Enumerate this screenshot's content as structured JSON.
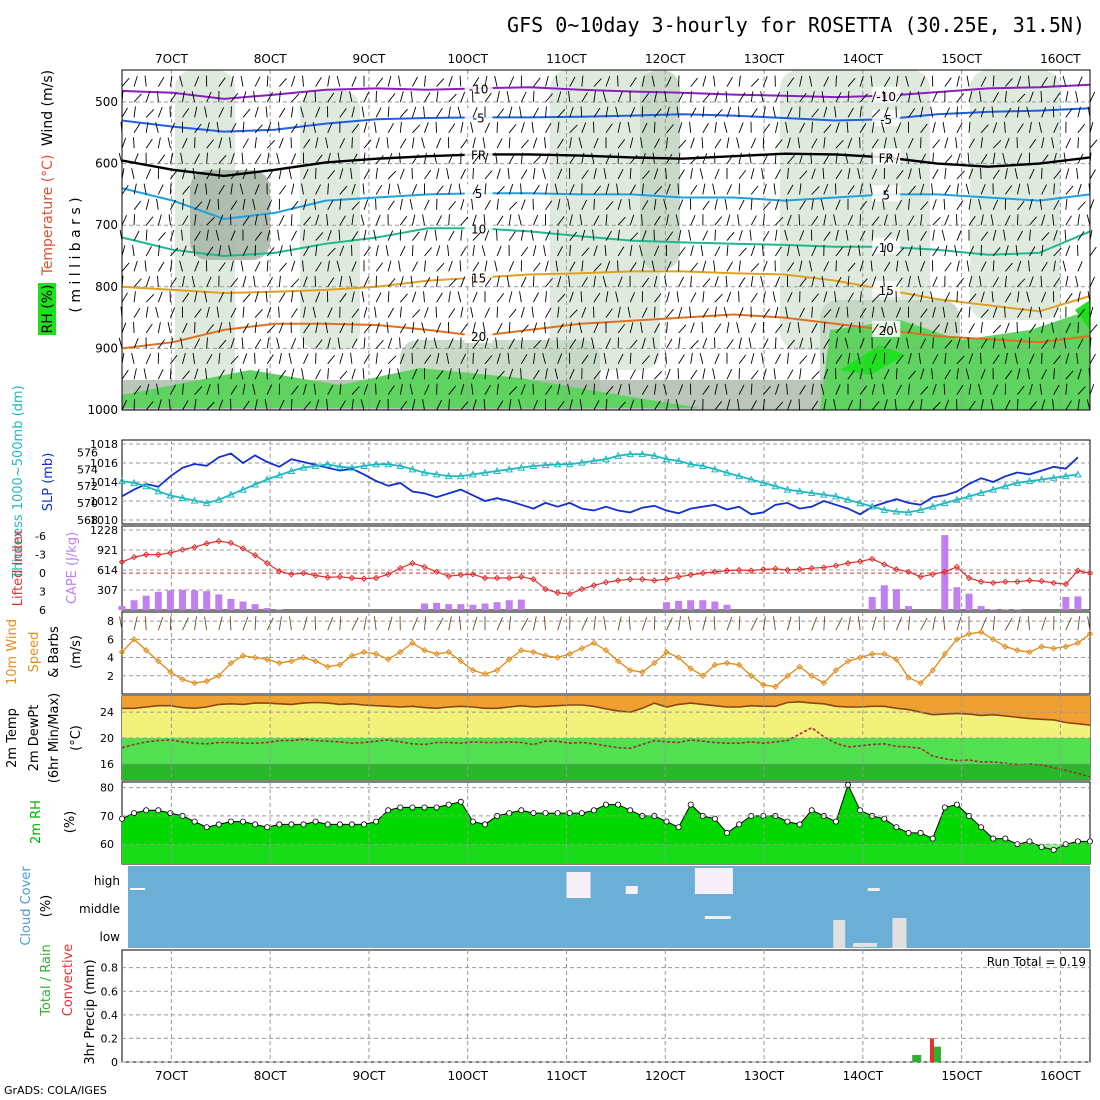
{
  "title": "GFS 0~10day 3-hourly for ROSETTA (30.25E, 31.5N)",
  "footer": "GrADS: COLA/IGES",
  "time_axis": {
    "labels": [
      "7OCT",
      "8OCT",
      "9OCT",
      "10OCT",
      "11OCT",
      "12OCT",
      "13OCT",
      "14OCT",
      "15OCT",
      "16OCT"
    ],
    "start_day": 6.5,
    "end_day": 16.3,
    "steps": 80
  },
  "chart_data": [
    {
      "type": "heatmap",
      "panel": "upper-air",
      "ylabel_parts": [
        "RH (%)",
        "Temperature (°C)",
        "Wind (m/s)"
      ],
      "ylabel_units": "( m i l l i b a r s )",
      "y_ticks": [
        500,
        600,
        700,
        800,
        900,
        1000
      ],
      "ylim": [
        1000,
        450
      ],
      "colors": {
        "rh_light": "#dbe8db",
        "rh_mid": "#c3d6c3",
        "rh_grey": "#a8b8a8",
        "rh_green": "#5fd35f",
        "rh_bright": "#1fe01f"
      },
      "temperature_contours": [
        {
          "label": "-10",
          "color": "#8a1fc0",
          "levels_mb": [
            482,
            485,
            495,
            488,
            480,
            478,
            480,
            478,
            476,
            480,
            483,
            485,
            488,
            490,
            492,
            490,
            484,
            478,
            476,
            472
          ]
        },
        {
          "label": "-5",
          "color": "#1f5fe0",
          "levels_mb": [
            530,
            540,
            548,
            545,
            535,
            528,
            526,
            525,
            525,
            524,
            522,
            520,
            522,
            526,
            530,
            528,
            520,
            516,
            514,
            510
          ]
        },
        {
          "label": "FR",
          "color": "#000000",
          "levels_mb": [
            595,
            610,
            620,
            610,
            598,
            592,
            588,
            585,
            585,
            587,
            590,
            592,
            588,
            584,
            585,
            590,
            600,
            605,
            600,
            590
          ]
        },
        {
          "label": "5",
          "color": "#1fa0e0",
          "levels_mb": [
            640,
            660,
            690,
            680,
            660,
            655,
            650,
            648,
            648,
            650,
            650,
            655,
            655,
            660,
            655,
            650,
            650,
            655,
            660,
            650
          ]
        },
        {
          "label": "10",
          "color": "#1fb890",
          "levels_mb": [
            720,
            740,
            750,
            745,
            730,
            720,
            705,
            705,
            710,
            718,
            725,
            728,
            730,
            732,
            735,
            735,
            740,
            748,
            745,
            710
          ]
        },
        {
          "label": "15",
          "color": "#e0a020",
          "levels_mb": [
            800,
            805,
            810,
            808,
            805,
            800,
            790,
            785,
            780,
            778,
            775,
            775,
            778,
            780,
            790,
            805,
            820,
            830,
            840,
            815
          ]
        },
        {
          "label": "20",
          "color": "#e07020",
          "levels_mb": [
            900,
            890,
            870,
            860,
            860,
            862,
            870,
            880,
            870,
            860,
            855,
            850,
            845,
            850,
            860,
            870,
            880,
            885,
            890,
            880
          ]
        }
      ]
    },
    {
      "type": "line",
      "panel": "slp-thickness",
      "ylabel_left": "SLP (mb)",
      "ylabel_left2": "Thickness 1000~500mb (dm)",
      "y_ticks_left": [
        1010,
        1012,
        1014,
        1016,
        1018
      ],
      "y_ticks_right_labels": [
        568,
        570,
        572,
        574,
        576
      ],
      "ylim_left": [
        1010,
        1018
      ],
      "ylim_right": [
        568,
        577
      ],
      "series": [
        {
          "name": "SLP (mb)",
          "color": "#1030d0",
          "marker": "none",
          "axis": "left",
          "values": [
            1012.5,
            1013.2,
            1013.8,
            1013.5,
            1014.6,
            1015.5,
            1015.9,
            1015.7,
            1016.6,
            1017.0,
            1016.0,
            1016.8,
            1016.1,
            1015.6,
            1016.4,
            1016.1,
            1015.8,
            1015.5,
            1015.2,
            1015.4,
            1014.8,
            1014.1,
            1013.6,
            1013.9,
            1013.0,
            1012.8,
            1012.4,
            1012.8,
            1013.2,
            1012.6,
            1012.0,
            1012.3,
            1012.0,
            1011.6,
            1011.2,
            1011.8,
            1011.4,
            1011.8,
            1011.2,
            1011.0,
            1011.4,
            1011.0,
            1010.8,
            1011.3,
            1011.5,
            1011.0,
            1010.7,
            1011.2,
            1011.4,
            1011.6,
            1011.1,
            1011.4,
            1010.6,
            1010.8,
            1011.6,
            1011.8,
            1011.2,
            1011.4,
            1012.0,
            1011.6,
            1011.2,
            1010.6,
            1011.4,
            1011.8,
            1012.2,
            1011.8,
            1011.6,
            1012.4,
            1012.6,
            1013.0,
            1013.8,
            1014.4,
            1014.0,
            1014.6,
            1015.0,
            1014.8,
            1015.2,
            1015.6,
            1015.4,
            1016.6
          ]
        },
        {
          "name": "Thickness 1000~500mb (dm)",
          "color": "#20b8c0",
          "marker": "triangle",
          "axis": "right",
          "values": [
            572.6,
            572.4,
            572.0,
            571.4,
            570.9,
            570.6,
            570.3,
            570.0,
            570.4,
            571.0,
            571.6,
            572.2,
            572.8,
            573.3,
            573.8,
            574.2,
            574.4,
            574.6,
            574.3,
            574.2,
            574.4,
            574.6,
            574.6,
            574.4,
            574.0,
            573.6,
            573.4,
            573.2,
            573.2,
            573.4,
            573.6,
            573.8,
            574.0,
            574.2,
            574.4,
            574.5,
            574.6,
            574.6,
            574.8,
            575.0,
            575.2,
            575.6,
            575.8,
            575.8,
            575.6,
            575.2,
            575.0,
            574.6,
            574.4,
            574.0,
            573.6,
            573.2,
            572.8,
            572.4,
            572.0,
            571.6,
            571.4,
            571.2,
            571.0,
            570.8,
            570.4,
            570.0,
            569.6,
            569.2,
            569.0,
            568.9,
            569.2,
            569.6,
            570.0,
            570.4,
            570.8,
            571.2,
            571.6,
            572.0,
            572.4,
            572.6,
            572.8,
            573.0,
            573.2,
            573.4
          ]
        }
      ]
    },
    {
      "type": "bar",
      "panel": "li-cape",
      "ylabel_left": "Lifted Index",
      "ylabel_right": "CAPE (J/kg)",
      "y_ticks_left_labels": [
        "6",
        "3",
        "0",
        "-3",
        "-6"
      ],
      "y_ticks_right_labels": [
        "307",
        "614",
        "921",
        "1228"
      ],
      "ylim_left": [
        6,
        -7
      ],
      "ylim_right": [
        0,
        1228
      ],
      "series": [
        {
          "name": "CAPE (J/kg)",
          "color": "#c080f0",
          "values": [
            60,
            150,
            220,
            280,
            300,
            310,
            300,
            290,
            240,
            170,
            130,
            90,
            30,
            10,
            0,
            0,
            0,
            0,
            0,
            0,
            0,
            0,
            0,
            0,
            0,
            100,
            110,
            90,
            90,
            80,
            100,
            120,
            150,
            160,
            0,
            0,
            0,
            0,
            0,
            0,
            0,
            0,
            0,
            0,
            0,
            120,
            140,
            150,
            150,
            130,
            80,
            0,
            0,
            0,
            0,
            0,
            0,
            0,
            0,
            0,
            0,
            0,
            200,
            380,
            320,
            60,
            0,
            0,
            1150,
            350,
            250,
            60,
            10,
            10,
            10,
            0,
            0,
            0,
            200,
            210,
            0
          ]
        },
        {
          "name": "Lifted Index",
          "color": "#e03030",
          "marker": "diamond",
          "values": [
            -1.8,
            -2.6,
            -3.0,
            -3.0,
            -3.3,
            -3.8,
            -4.2,
            -4.8,
            -5.2,
            -4.9,
            -4.0,
            -2.9,
            -1.6,
            -0.3,
            0.2,
            0.0,
            0.4,
            0.7,
            0.6,
            0.8,
            0.9,
            0.8,
            0.2,
            -0.8,
            -1.6,
            -1.0,
            -0.2,
            0.5,
            0.3,
            0.2,
            0.8,
            0.8,
            0.8,
            0.6,
            1.0,
            2.6,
            3.2,
            3.4,
            2.6,
            2.0,
            1.5,
            1.2,
            1.0,
            1.0,
            1.2,
            1.0,
            0.6,
            0.3,
            0.0,
            -0.2,
            -0.4,
            -0.5,
            -0.4,
            -0.6,
            -0.7,
            -0.5,
            -0.6,
            -0.8,
            -0.9,
            -1.2,
            -1.6,
            -1.9,
            -2.3,
            -1.4,
            -0.6,
            -0.2,
            0.6,
            0.2,
            -0.2,
            -1.0,
            0.8,
            1.4,
            1.6,
            1.4,
            1.4,
            1.2,
            1.3,
            1.6,
            1.8,
            -0.4,
            0.0
          ]
        }
      ]
    },
    {
      "type": "line",
      "panel": "wind",
      "ylabel_parts": [
        "10m Wind",
        "Speed",
        "& Barbs",
        "(m/s)"
      ],
      "y_ticks": [
        2,
        4,
        6,
        8
      ],
      "ylim": [
        0,
        9
      ],
      "series": [
        {
          "name": "Speed",
          "color": "#e09020",
          "marker": "diamond",
          "values": [
            4.6,
            6.0,
            4.8,
            3.6,
            2.4,
            1.6,
            1.2,
            1.4,
            2.0,
            3.4,
            4.2,
            4.0,
            3.8,
            3.4,
            3.6,
            4.0,
            3.6,
            3.0,
            3.2,
            4.2,
            4.6,
            4.4,
            3.8,
            4.6,
            5.6,
            4.8,
            4.4,
            4.6,
            3.6,
            2.6,
            2.2,
            2.6,
            3.8,
            4.8,
            4.6,
            4.2,
            4.0,
            4.4,
            5.0,
            5.6,
            4.8,
            3.6,
            2.6,
            2.4,
            3.4,
            4.6,
            4.0,
            2.8,
            2.0,
            3.2,
            3.4,
            3.2,
            2.0,
            1.0,
            0.8,
            2.0,
            3.0,
            2.0,
            1.2,
            2.6,
            3.6,
            4.0,
            4.4,
            4.4,
            3.8,
            1.8,
            1.2,
            2.6,
            4.4,
            6.0,
            6.6,
            6.8,
            6.0,
            5.2,
            4.8,
            4.6,
            5.2,
            5.0,
            5.2,
            5.6,
            6.6
          ]
        }
      ]
    },
    {
      "type": "area",
      "panel": "temperature",
      "ylabel_parts": [
        "2m Temp",
        "2m DewPt",
        "(6hr Min/Max)",
        "(°C)"
      ],
      "y_ticks": [
        16,
        20,
        24
      ],
      "ylim": [
        13.5,
        26.5
      ],
      "series": [
        {
          "name": "2m Temp",
          "color": "#8b4513",
          "values": [
            24.6,
            24.6,
            24.8,
            25.0,
            25.0,
            24.7,
            24.6,
            24.8,
            25.2,
            25.3,
            25.2,
            25.4,
            25.4,
            25.3,
            25.2,
            25.4,
            25.5,
            25.4,
            25.2,
            25.3,
            25.1,
            25.0,
            24.9,
            24.8,
            24.9,
            24.7,
            24.6,
            24.8,
            24.9,
            24.8,
            24.6,
            24.6,
            24.8,
            25.0,
            24.8,
            24.9,
            25.0,
            25.1,
            25.1,
            24.9,
            24.5,
            24.2,
            24.0,
            24.6,
            25.4,
            24.8,
            25.2,
            25.4,
            25.2,
            25.0,
            24.8,
            24.8,
            25.0,
            24.9,
            24.9,
            25.5,
            25.6,
            25.4,
            25.3,
            24.9,
            24.8,
            24.8,
            24.9,
            24.9,
            24.6,
            24.4,
            24.0,
            23.6,
            23.7,
            23.8,
            23.7,
            23.5,
            23.6,
            23.4,
            23.2,
            23.0,
            22.9,
            22.8,
            22.4,
            22.2,
            22.0
          ]
        },
        {
          "name": "2m DewPt",
          "color": "#8b4513",
          "values": [
            18.5,
            19.0,
            19.4,
            19.6,
            19.7,
            19.4,
            19.2,
            19.1,
            19.3,
            19.3,
            19.2,
            19.2,
            19.3,
            19.6,
            19.6,
            19.8,
            19.6,
            19.5,
            19.4,
            19.2,
            19.3,
            19.5,
            19.7,
            19.4,
            19.1,
            19.0,
            19.3,
            19.3,
            19.2,
            19.4,
            19.3,
            19.3,
            19.4,
            19.3,
            19.0,
            19.5,
            19.5,
            19.2,
            19.3,
            19.1,
            18.8,
            18.5,
            18.4,
            19.0,
            19.6,
            19.4,
            19.3,
            19.7,
            19.5,
            19.3,
            19.2,
            19.2,
            19.4,
            19.2,
            19.4,
            19.6,
            20.6,
            21.6,
            20.2,
            19.2,
            18.6,
            18.8,
            19.0,
            19.1,
            18.7,
            18.6,
            18.4,
            17.2,
            16.8,
            16.5,
            16.6,
            16.3,
            16.3,
            16.1,
            15.9,
            16.0,
            15.8,
            15.4,
            15.0,
            14.5,
            14.0
          ]
        }
      ]
    },
    {
      "type": "area",
      "panel": "rh",
      "ylabel_parts": [
        "2m RH",
        "(%)"
      ],
      "y_ticks": [
        60,
        70,
        80
      ],
      "ylim": [
        53,
        82
      ],
      "series": [
        {
          "name": "2m RH",
          "color": "#00c000",
          "values": [
            69,
            71,
            72,
            72,
            71,
            70,
            68,
            66,
            67,
            68,
            68,
            67,
            66,
            67,
            67,
            67,
            68,
            67,
            67,
            67,
            67,
            68,
            72,
            73,
            73,
            73,
            73,
            74,
            75,
            68,
            67,
            70,
            71,
            72,
            71,
            71,
            71,
            71,
            71,
            72,
            74,
            74,
            72,
            70,
            70,
            68,
            66,
            74,
            70,
            69,
            64,
            67,
            70,
            70,
            70,
            68,
            67,
            72,
            70,
            68,
            81,
            72,
            70,
            69,
            66,
            64,
            64,
            62,
            73,
            74,
            70,
            66,
            62,
            62,
            60,
            61,
            59,
            58,
            60,
            61,
            61
          ]
        }
      ]
    },
    {
      "type": "bar",
      "panel": "cloud",
      "ylabel_parts": [
        "Cloud Cover",
        "(%)"
      ],
      "y_labels": [
        "high",
        "middle",
        "low"
      ],
      "colors": {
        "background": "#6baed6"
      }
    },
    {
      "type": "bar",
      "panel": "precip",
      "ylabel_parts": [
        "Total / Rain",
        "Convective",
        "3hr Precip (mm)"
      ],
      "y_ticks": [
        0,
        0.2,
        0.4,
        0.6,
        0.8
      ],
      "ylim": [
        0,
        0.95
      ],
      "run_total_label": "Run Total = 0.19",
      "series": [
        {
          "name": "Total / Rain",
          "color": "#30b030",
          "values_at": [
            [
              14.5,
              0.06
            ],
            [
              14.7,
              0.13
            ]
          ]
        },
        {
          "name": "Convective",
          "color": "#e03030",
          "values_at": [
            [
              14.7,
              0.2
            ]
          ]
        }
      ]
    }
  ]
}
